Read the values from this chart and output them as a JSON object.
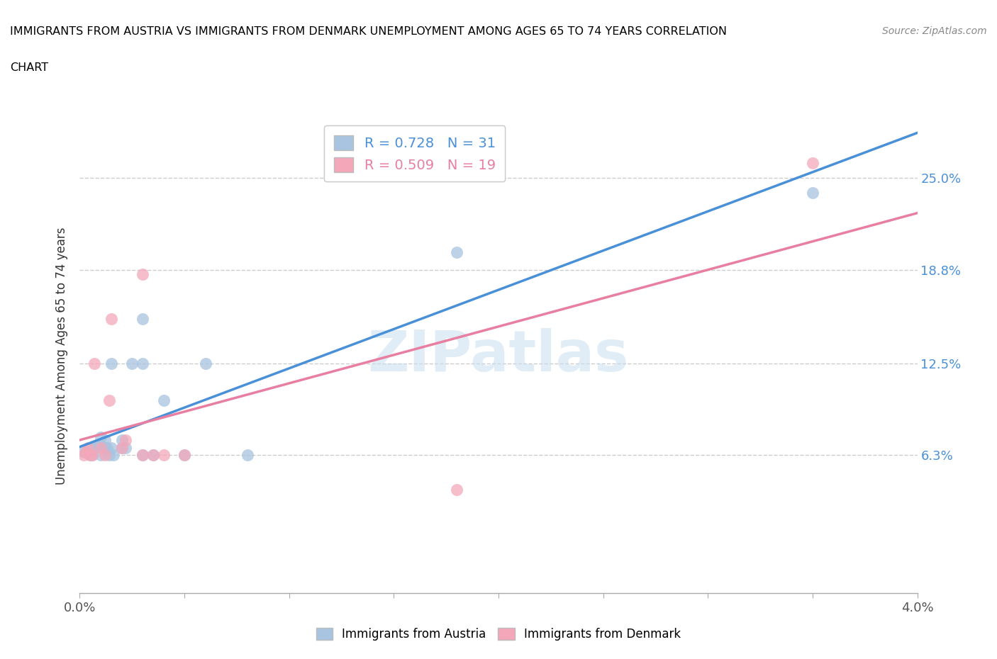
{
  "title_line1": "IMMIGRANTS FROM AUSTRIA VS IMMIGRANTS FROM DENMARK UNEMPLOYMENT AMONG AGES 65 TO 74 YEARS CORRELATION",
  "title_line2": "CHART",
  "source": "Source: ZipAtlas.com",
  "ylabel": "Unemployment Among Ages 65 to 74 years",
  "xlim": [
    0.0,
    0.04
  ],
  "ylim": [
    -0.03,
    0.29
  ],
  "y_ticks": [
    0.063,
    0.125,
    0.188,
    0.25
  ],
  "y_tick_labels": [
    "6.3%",
    "12.5%",
    "18.8%",
    "25.0%"
  ],
  "austria_color": "#a8c4e0",
  "denmark_color": "#f4a7b9",
  "austria_line_color": "#4a90d9",
  "denmark_line_color": "#e87fa0",
  "R_austria": "0.728",
  "N_austria": "31",
  "R_denmark": "0.509",
  "N_denmark": "19",
  "legend1_label": "R = 0.728   N = 31",
  "legend2_label": "R = 0.509   N = 19",
  "bottom_label1": "Immigrants from Austria",
  "bottom_label2": "Immigrants from Denmark",
  "watermark": "ZIPatlas",
  "austria_x": [
    0.0002,
    0.0003,
    0.0005,
    0.0005,
    0.0006,
    0.0007,
    0.0008,
    0.001,
    0.001,
    0.001,
    0.0012,
    0.0012,
    0.0013,
    0.0014,
    0.0015,
    0.0015,
    0.0016,
    0.002,
    0.002,
    0.0022,
    0.0025,
    0.003,
    0.003,
    0.003,
    0.0035,
    0.004,
    0.005,
    0.006,
    0.008,
    0.018,
    0.035
  ],
  "austria_y": [
    0.065,
    0.065,
    0.063,
    0.068,
    0.063,
    0.068,
    0.07,
    0.07,
    0.075,
    0.063,
    0.068,
    0.073,
    0.068,
    0.063,
    0.068,
    0.125,
    0.063,
    0.068,
    0.073,
    0.068,
    0.125,
    0.063,
    0.125,
    0.155,
    0.063,
    0.1,
    0.063,
    0.125,
    0.063,
    0.2,
    0.24
  ],
  "denmark_x": [
    0.0002,
    0.0003,
    0.0004,
    0.0005,
    0.0006,
    0.0007,
    0.001,
    0.0012,
    0.0014,
    0.0015,
    0.002,
    0.0022,
    0.003,
    0.003,
    0.0035,
    0.004,
    0.005,
    0.018,
    0.035
  ],
  "denmark_y": [
    0.063,
    0.065,
    0.068,
    0.063,
    0.063,
    0.125,
    0.068,
    0.063,
    0.1,
    0.155,
    0.068,
    0.073,
    0.063,
    0.185,
    0.063,
    0.063,
    0.063,
    0.04,
    0.26
  ]
}
